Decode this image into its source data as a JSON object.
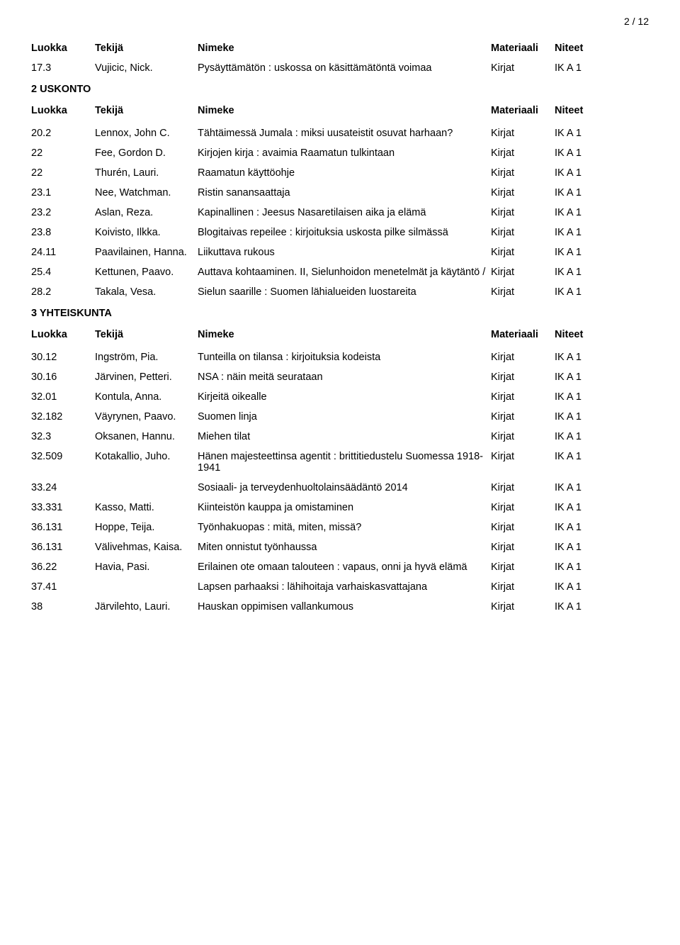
{
  "page_number": "2 / 12",
  "headers": {
    "class": "Luokka",
    "author": "Tekijä",
    "title": "Nimeke",
    "material": "Materiaali",
    "note": "Niteet"
  },
  "top_rows": [
    {
      "class": "17.3",
      "author": "Vujicic, Nick.",
      "title": "Pysäyttämätön : uskossa on käsittämätöntä voimaa",
      "material": "Kirjat",
      "note": "IK  A 1"
    }
  ],
  "section1": {
    "heading": "2 USKONTO",
    "rows": [
      {
        "class": "20.2",
        "author": "Lennox, John C.",
        "title": "Tähtäimessä Jumala : miksi uusateistit osuvat harhaan?",
        "material": "Kirjat",
        "note": "IK  A 1"
      },
      {
        "class": "22",
        "author": "Fee, Gordon D.",
        "title": "Kirjojen kirja : avaimia Raamatun tulkintaan",
        "material": "Kirjat",
        "note": "IK  A 1"
      },
      {
        "class": "22",
        "author": "Thurén, Lauri.",
        "title": "Raamatun käyttöohje",
        "material": "Kirjat",
        "note": "IK  A 1"
      },
      {
        "class": "23.1",
        "author": "Nee, Watchman.",
        "title": "Ristin sanansaattaja",
        "material": "Kirjat",
        "note": "IK  A 1"
      },
      {
        "class": "23.2",
        "author": "Aslan, Reza.",
        "title": "Kapinallinen : Jeesus Nasaretilaisen aika ja elämä",
        "material": "Kirjat",
        "note": "IK  A 1"
      },
      {
        "class": "23.8",
        "author": "Koivisto, Ilkka.",
        "title": "Blogitaivas repeilee : kirjoituksia uskosta pilke silmässä",
        "material": "Kirjat",
        "note": "IK  A 1"
      },
      {
        "class": "24.11",
        "author": "Paavilainen, Hanna.",
        "title": "Liikuttava rukous",
        "material": "Kirjat",
        "note": "IK  A 1"
      },
      {
        "class": "25.4",
        "author": "Kettunen, Paavo.",
        "title": "Auttava kohtaaminen. II, Sielunhoidon menetelmät ja käytäntö /",
        "material": "Kirjat",
        "note": "IK  A 1"
      },
      {
        "class": "28.2",
        "author": "Takala, Vesa.",
        "title": "Sielun saarille : Suomen lähialueiden luostareita",
        "material": "Kirjat",
        "note": "IK  A 1"
      }
    ]
  },
  "section2": {
    "heading": "3 YHTEISKUNTA",
    "rows": [
      {
        "class": "30.12",
        "author": "Ingström, Pia.",
        "title": "Tunteilla on tilansa : kirjoituksia kodeista",
        "material": "Kirjat",
        "note": "IK  A 1"
      },
      {
        "class": "30.16",
        "author": "Järvinen, Petteri.",
        "title": "NSA : näin meitä seurataan",
        "material": "Kirjat",
        "note": "IK  A 1"
      },
      {
        "class": "32.01",
        "author": "Kontula, Anna.",
        "title": "Kirjeitä oikealle",
        "material": "Kirjat",
        "note": "IK  A 1"
      },
      {
        "class": "32.182",
        "author": "Väyrynen, Paavo.",
        "title": "Suomen linja",
        "material": "Kirjat",
        "note": "IK  A 1"
      },
      {
        "class": "32.3",
        "author": "Oksanen, Hannu.",
        "title": "Miehen tilat",
        "material": "Kirjat",
        "note": "IK  A 1"
      },
      {
        "class": "32.509",
        "author": "Kotakallio, Juho.",
        "title": "Hänen majesteettinsa agentit : brittitiedustelu Suomessa 1918-1941",
        "material": "Kirjat",
        "note": "IK  A 1"
      },
      {
        "class": "33.24",
        "author": "",
        "title": "Sosiaali- ja terveydenhuoltolainsäädäntö 2014",
        "material": "Kirjat",
        "note": "IK  A 1"
      },
      {
        "class": "33.331",
        "author": "Kasso, Matti.",
        "title": "Kiinteistön kauppa ja omistaminen",
        "material": "Kirjat",
        "note": "IK  A 1"
      },
      {
        "class": "36.131",
        "author": "Hoppe, Teija.",
        "title": "Työnhakuopas : mitä, miten, missä?",
        "material": "Kirjat",
        "note": "IK  A 1"
      },
      {
        "class": "36.131",
        "author": "Välivehmas, Kaisa.",
        "title": "Miten onnistut työnhaussa",
        "material": "Kirjat",
        "note": "IK  A 1"
      },
      {
        "class": "36.22",
        "author": "Havia, Pasi.",
        "title": "Erilainen ote omaan talouteen : vapaus, onni ja hyvä elämä",
        "material": "Kirjat",
        "note": "IK  A 1"
      },
      {
        "class": "37.41",
        "author": "",
        "title": "Lapsen parhaaksi : lähihoitaja varhaiskasvattajana",
        "material": "Kirjat",
        "note": "IK  A 1"
      },
      {
        "class": "38",
        "author": "Järvilehto, Lauri.",
        "title": "Hauskan oppimisen vallankumous",
        "material": "Kirjat",
        "note": "IK  A 1"
      }
    ]
  }
}
